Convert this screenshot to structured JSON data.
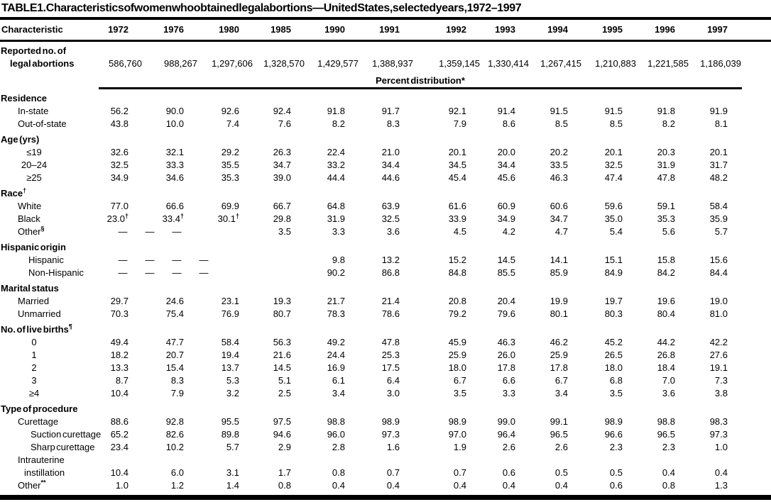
{
  "title": "TABLE 1. Characteristics of women who obtained legal abortions — United States, selected years, 1972–1997",
  "dash": "—",
  "columns": {
    "characteristic": "Characteristic",
    "years": [
      "1972",
      "1976",
      "1980",
      "1985",
      "1990",
      "1991",
      "1992",
      "1993",
      "1994",
      "1995",
      "1996",
      "1997"
    ]
  },
  "abortion_counts": {
    "label_line1": "Reported no. of",
    "label_line2": "legal abortions",
    "values": [
      "586,760",
      "988,267",
      "1,297,606",
      "1,328,570",
      "1,429,577",
      "1,388,937",
      "1,359,145",
      "1,330,414",
      "1,267,415",
      "1,210,883",
      "1,221,585",
      "1,186,039"
    ]
  },
  "percent_header": "Percent distribution*",
  "sections": [
    {
      "name": "Residence",
      "sup": "",
      "rows": [
        {
          "label": "In-state",
          "sup": "",
          "indent": "lvl1",
          "center": false,
          "dashes": 0,
          "values": [
            "56.2",
            "90.0",
            "92.6",
            "92.4",
            "91.8",
            "91.7",
            "92.1",
            "91.4",
            "91.5",
            "91.5",
            "91.8",
            "91.9"
          ]
        },
        {
          "label": "Out-of-state",
          "sup": "",
          "indent": "lvl1",
          "center": false,
          "dashes": 0,
          "values": [
            "43.8",
            "10.0",
            "7.4",
            "7.6",
            "8.2",
            "8.3",
            "7.9",
            "8.6",
            "8.5",
            "8.5",
            "8.2",
            "8.1"
          ]
        }
      ]
    },
    {
      "name": "Age (yrs)",
      "sup": "",
      "rows": [
        {
          "label": "≤19",
          "sup": "",
          "indent": "",
          "center": true,
          "dashes": 0,
          "values": [
            "32.6",
            "32.1",
            "29.2",
            "26.3",
            "22.4",
            "21.0",
            "20.1",
            "20.0",
            "20.2",
            "20.1",
            "20.3",
            "20.1"
          ]
        },
        {
          "label": "20–24",
          "sup": "",
          "indent": "",
          "center": true,
          "dashes": 0,
          "values": [
            "32.5",
            "33.3",
            "35.5",
            "34.7",
            "33.2",
            "34.4",
            "34.5",
            "34.4",
            "33.5",
            "32.5",
            "31.9",
            "31.7"
          ]
        },
        {
          "label": "≥25",
          "sup": "",
          "indent": "",
          "center": true,
          "dashes": 0,
          "values": [
            "34.9",
            "34.6",
            "35.3",
            "39.0",
            "44.4",
            "44.6",
            "45.4",
            "45.6",
            "46.3",
            "47.4",
            "47.8",
            "48.2"
          ]
        }
      ]
    },
    {
      "name": "Race",
      "sup": "†",
      "rows": [
        {
          "label": "White",
          "sup": "",
          "indent": "lvl1",
          "center": false,
          "dashes": 0,
          "values": [
            "77.0",
            "66.6",
            "69.9",
            "66.7",
            "64.8",
            "63.9",
            "61.6",
            "60.9",
            "60.6",
            "59.6",
            "59.1",
            "58.4"
          ]
        },
        {
          "label": "Black",
          "sup": "",
          "indent": "lvl1",
          "center": false,
          "dashes": 0,
          "values": [
            "23.0†",
            "33.4†",
            "30.1†",
            "29.8",
            "31.9",
            "32.5",
            "33.9",
            "34.9",
            "34.7",
            "35.0",
            "35.3",
            "35.9"
          ]
        },
        {
          "label": "Other",
          "sup": "§",
          "indent": "lvl1",
          "center": false,
          "dashes": 3,
          "values": [
            "3.5",
            "3.3",
            "3.6",
            "4.5",
            "4.2",
            "4.7",
            "5.4",
            "5.6",
            "5.7"
          ]
        }
      ]
    },
    {
      "name": "Hispanic origin",
      "sup": "",
      "rows": [
        {
          "label": "Hispanic",
          "sup": "",
          "indent": "lvl1h",
          "center": false,
          "dashes": 4,
          "values": [
            "9.8",
            "13.2",
            "15.2",
            "14.5",
            "14.1",
            "15.1",
            "15.8",
            "15.6"
          ]
        },
        {
          "label": "Non-Hispanic",
          "sup": "",
          "indent": "lvl1h",
          "center": false,
          "dashes": 4,
          "values": [
            "90.2",
            "86.8",
            "84.8",
            "85.5",
            "85.9",
            "84.9",
            "84.2",
            "84.4"
          ]
        }
      ]
    },
    {
      "name": "Marital status",
      "sup": "",
      "rows": [
        {
          "label": "Married",
          "sup": "",
          "indent": "lvl1",
          "center": false,
          "dashes": 0,
          "values": [
            "29.7",
            "24.6",
            "23.1",
            "19.3",
            "21.7",
            "21.4",
            "20.8",
            "20.4",
            "19.9",
            "19.7",
            "19.6",
            "19.0"
          ]
        },
        {
          "label": "Unmarried",
          "sup": "",
          "indent": "lvl1",
          "center": false,
          "dashes": 0,
          "values": [
            "70.3",
            "75.4",
            "76.9",
            "80.7",
            "78.3",
            "78.6",
            "79.2",
            "79.6",
            "80.1",
            "80.3",
            "80.4",
            "81.0"
          ]
        }
      ]
    },
    {
      "name": "No. of live births",
      "sup": "¶",
      "rows": [
        {
          "label": "0",
          "sup": "",
          "indent": "",
          "center": true,
          "dashes": 0,
          "values": [
            "49.4",
            "47.7",
            "58.4",
            "56.3",
            "49.2",
            "47.8",
            "45.9",
            "46.3",
            "46.2",
            "45.2",
            "44.2",
            "42.2"
          ]
        },
        {
          "label": "1",
          "sup": "",
          "indent": "",
          "center": true,
          "dashes": 0,
          "values": [
            "18.2",
            "20.7",
            "19.4",
            "21.6",
            "24.4",
            "25.3",
            "25.9",
            "26.0",
            "25.9",
            "26.5",
            "26.8",
            "27.6"
          ]
        },
        {
          "label": "2",
          "sup": "",
          "indent": "",
          "center": true,
          "dashes": 0,
          "values": [
            "13.3",
            "15.4",
            "13.7",
            "14.5",
            "16.9",
            "17.5",
            "18.0",
            "17.8",
            "17.8",
            "18.0",
            "18.4",
            "19.1"
          ]
        },
        {
          "label": "3",
          "sup": "",
          "indent": "",
          "center": true,
          "dashes": 0,
          "values": [
            "8.7",
            "8.3",
            "5.3",
            "5.1",
            "6.1",
            "6.4",
            "6.7",
            "6.6",
            "6.7",
            "6.8",
            "7.0",
            "7.3"
          ]
        },
        {
          "label": "≥4",
          "sup": "",
          "indent": "",
          "center": true,
          "dashes": 0,
          "values": [
            "10.4",
            "7.9",
            "3.2",
            "2.5",
            "3.4",
            "3.0",
            "3.5",
            "3.3",
            "3.4",
            "3.5",
            "3.6",
            "3.8"
          ]
        }
      ]
    },
    {
      "name": "Type of procedure",
      "sup": "",
      "rows": [
        {
          "label": "Curettage",
          "sup": "",
          "indent": "lvl1",
          "center": false,
          "dashes": 0,
          "values": [
            "88.6",
            "92.8",
            "95.5",
            "97.5",
            "98.8",
            "98.9",
            "98.9",
            "99.0",
            "99.1",
            "98.9",
            "98.8",
            "98.3"
          ]
        },
        {
          "label": "Suction curettage",
          "sup": "",
          "indent": "lvl2",
          "center": false,
          "dashes": 0,
          "values": [
            "65.2",
            "82.6",
            "89.8",
            "94.6",
            "96.0",
            "97.3",
            "97.0",
            "96.4",
            "96.5",
            "96.6",
            "96.5",
            "97.3"
          ]
        },
        {
          "label": "Sharp curettage",
          "sup": "",
          "indent": "lvl2",
          "center": false,
          "dashes": 0,
          "values": [
            "23.4",
            "10.2",
            "5.7",
            "2.9",
            "2.8",
            "1.6",
            "1.9",
            "2.6",
            "2.6",
            "2.3",
            "2.3",
            "1.0"
          ]
        },
        {
          "label": "Intrauterine",
          "sup": "",
          "indent": "lvl1",
          "center": false,
          "dashes": 0,
          "values": []
        },
        {
          "label": "instillation",
          "sup": "",
          "indent": "lvl1b",
          "center": false,
          "dashes": 0,
          "values": [
            "10.4",
            "6.0",
            "3.1",
            "1.7",
            "0.8",
            "0.7",
            "0.7",
            "0.6",
            "0.5",
            "0.5",
            "0.4",
            "0.4"
          ]
        },
        {
          "label": "Other",
          "sup": "**",
          "indent": "lvl1",
          "center": false,
          "dashes": 0,
          "values": [
            "1.0",
            "1.2",
            "1.4",
            "0.8",
            "0.4",
            "0.4",
            "0.4",
            "0.4",
            "0.4",
            "0.6",
            "0.8",
            "1.3"
          ]
        }
      ]
    }
  ]
}
